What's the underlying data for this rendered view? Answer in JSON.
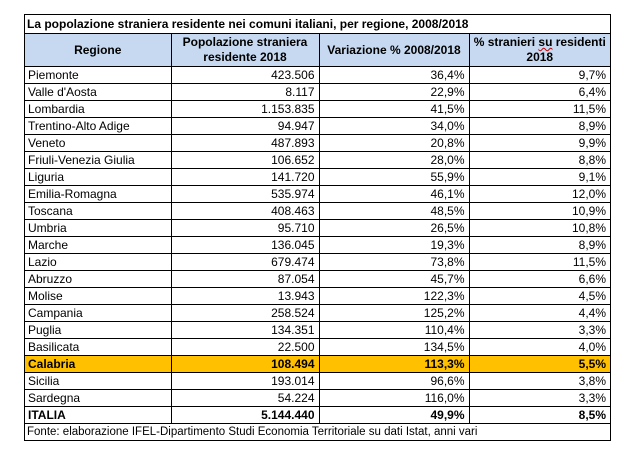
{
  "caption": "La popolazione straniera residente nei comuni italiani, per regione, 2008/2018",
  "headers": {
    "regione": "Regione",
    "popolazione": "Popolazione straniera residente 2018",
    "variazione": "Variazione % 2008/2018",
    "stranieri_pre": "% stranieri ",
    "stranieri_su": "su",
    "stranieri_post": " residenti 2018"
  },
  "rows": [
    {
      "regione": "Piemonte",
      "pop": "423.506",
      "var": "36,4%",
      "pct": "9,7%"
    },
    {
      "regione": "Valle d'Aosta",
      "pop": "8.117",
      "var": "22,9%",
      "pct": "6,4%"
    },
    {
      "regione": "Lombardia",
      "pop": "1.153.835",
      "var": "41,5%",
      "pct": "11,5%"
    },
    {
      "regione": "Trentino-Alto Adige",
      "pop": "94.947",
      "var": "34,0%",
      "pct": "8,9%"
    },
    {
      "regione": "Veneto",
      "pop": "487.893",
      "var": "20,8%",
      "pct": "9,9%"
    },
    {
      "regione": "Friuli-Venezia Giulia",
      "pop": "106.652",
      "var": "28,0%",
      "pct": "8,8%"
    },
    {
      "regione": "Liguria",
      "pop": "141.720",
      "var": "55,9%",
      "pct": "9,1%"
    },
    {
      "regione": "Emilia-Romagna",
      "pop": "535.974",
      "var": "46,1%",
      "pct": "12,0%"
    },
    {
      "regione": "Toscana",
      "pop": "408.463",
      "var": "48,5%",
      "pct": "10,9%"
    },
    {
      "regione": "Umbria",
      "pop": "95.710",
      "var": "26,5%",
      "pct": "10,8%"
    },
    {
      "regione": "Marche",
      "pop": "136.045",
      "var": "19,3%",
      "pct": "8,9%"
    },
    {
      "regione": "Lazio",
      "pop": "679.474",
      "var": "73,8%",
      "pct": "11,5%"
    },
    {
      "regione": "Abruzzo",
      "pop": "87.054",
      "var": "45,7%",
      "pct": "6,6%"
    },
    {
      "regione": "Molise",
      "pop": "13.943",
      "var": "122,3%",
      "pct": "4,5%"
    },
    {
      "regione": "Campania",
      "pop": "258.524",
      "var": "125,2%",
      "pct": "4,4%"
    },
    {
      "regione": "Puglia",
      "pop": "134.351",
      "var": "110,4%",
      "pct": "3,3%"
    },
    {
      "regione": "Basilicata",
      "pop": "22.500",
      "var": "134,5%",
      "pct": "4,0%"
    },
    {
      "regione": "Calabria",
      "pop": "108.494",
      "var": "113,3%",
      "pct": "5,5%"
    },
    {
      "regione": "Sicilia",
      "pop": "193.014",
      "var": "96,6%",
      "pct": "3,8%"
    },
    {
      "regione": "Sardegna",
      "pop": "54.224",
      "var": "116,0%",
      "pct": "3,3%"
    }
  ],
  "total": {
    "regione": "ITALIA",
    "pop": "5.144.440",
    "var": "49,9%",
    "pct": "8,5%"
  },
  "highlight_color": "#ffc000",
  "header_color": "#c6d9f0",
  "source": "Fonte: elaborazione IFEL-Dipartimento Studi Economia Territoriale su dati Istat, anni vari"
}
